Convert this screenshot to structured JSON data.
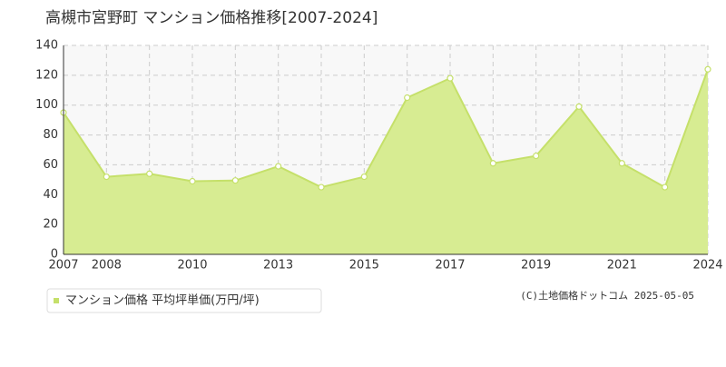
{
  "chart_data": {
    "type": "area",
    "title": "高槻市宮野町 マンション価格推移[2007-2024]",
    "categories": [
      "2007",
      "2008",
      null,
      "2010",
      null,
      "2013",
      null,
      "2015",
      null,
      "2017",
      null,
      "2019",
      null,
      "2021",
      null,
      "2024"
    ],
    "series": [
      {
        "name": "マンション価格 平均坪単価(万円/坪)",
        "color": "#c5e06a",
        "values": [
          95,
          52,
          54,
          49,
          49.5,
          59,
          45,
          52,
          105,
          118,
          61,
          66,
          99,
          61,
          45,
          124
        ]
      }
    ],
    "ylim": [
      0,
      140
    ],
    "yticks": [
      0,
      20,
      40,
      60,
      80,
      100,
      120,
      140
    ],
    "grid": true,
    "credit": "(C)土地価格ドットコム 2025-05-05"
  }
}
